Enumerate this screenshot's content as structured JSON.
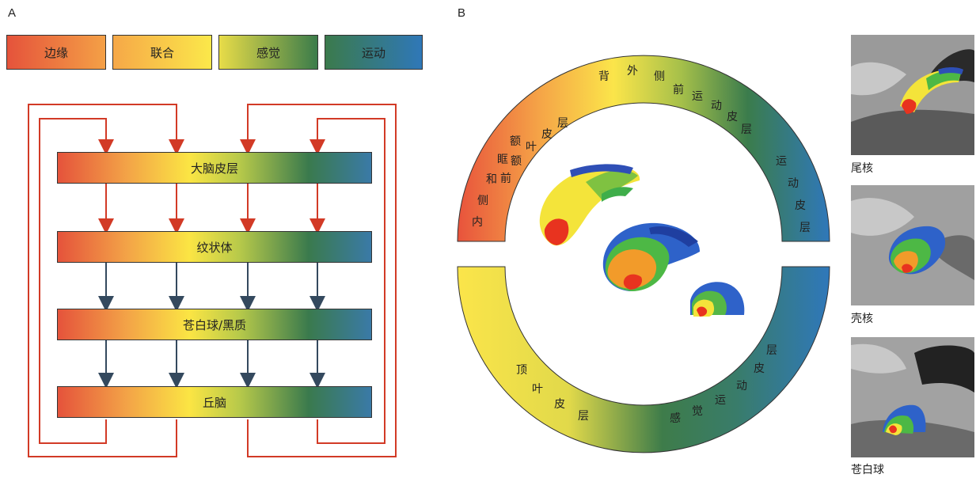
{
  "panels": {
    "a": "A",
    "b": "B"
  },
  "legend": [
    {
      "label": "边缘"
    },
    {
      "label": "联合"
    },
    {
      "label": "感觉"
    },
    {
      "label": "运动"
    }
  ],
  "pathway": {
    "levels": [
      "大脑皮层",
      "纹状体",
      "苍白球/黑质",
      "丘脑"
    ],
    "colors": {
      "feedback": "#d23a26",
      "direct": "#d23a26",
      "output": "#34495e"
    }
  },
  "ring": {
    "top_inner": [
      "前",
      "额",
      "叶",
      "皮",
      "层"
    ],
    "top_outer_left": [
      "内",
      "侧",
      "和",
      "眶",
      "额"
    ],
    "top_middle": [
      "背",
      "外",
      "侧"
    ],
    "top_right_inner": [
      "前",
      "运",
      "动",
      "皮",
      "层"
    ],
    "top_right_outer": [
      "运",
      "动",
      "皮",
      "层"
    ],
    "bottom_left": [
      "顶",
      "叶",
      "皮",
      "层"
    ],
    "bottom_right": [
      "感",
      "觉",
      "运",
      "动",
      "皮",
      "层"
    ]
  },
  "thumbnails": [
    {
      "label": "尾核"
    },
    {
      "label": "壳核"
    },
    {
      "label": "苍白球"
    }
  ]
}
